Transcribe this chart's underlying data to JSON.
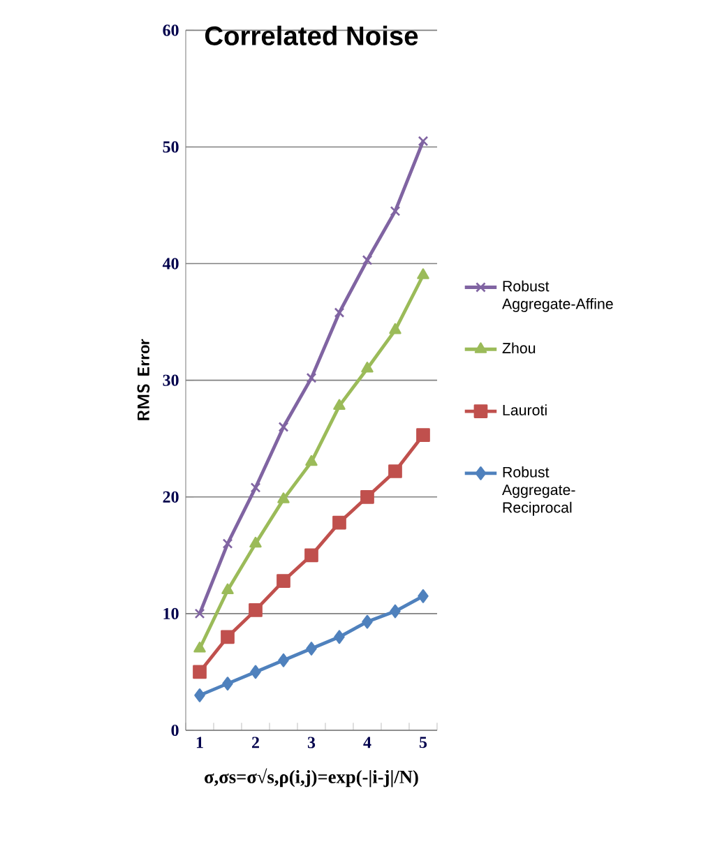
{
  "chart_data": {
    "type": "line",
    "title": "Correlated Noise",
    "xlabel": "σ,σs=σ√s,ρ(i,j)=exp(-|i-j|/N)",
    "ylabel": "RMS Error",
    "categories": [
      "1",
      null,
      "2",
      null,
      "3",
      null,
      "4",
      null,
      "5"
    ],
    "series": [
      {
        "name": "Robust Aggregate-Affine",
        "color": "#8064a2",
        "marker": "cross",
        "values": [
          10,
          16,
          20.8,
          26,
          30.2,
          35.8,
          40.3,
          44.5,
          50.5
        ]
      },
      {
        "name": "Zhou",
        "color": "#9bbb59",
        "marker": "triangle",
        "values": [
          7,
          12,
          16,
          19.8,
          23,
          27.8,
          31,
          34.3,
          39
        ]
      },
      {
        "name": "Lauroti",
        "color": "#c0504d",
        "marker": "square",
        "values": [
          5,
          8,
          10.3,
          12.8,
          15,
          17.8,
          20,
          22.2,
          25.3
        ]
      },
      {
        "name": "Robust Aggregate-Reciprocal",
        "color": "#4f81bd",
        "marker": "diamond",
        "values": [
          3,
          4,
          5,
          6,
          7,
          8,
          9.3,
          10.2,
          11.5
        ]
      }
    ],
    "ylim": [
      0,
      60
    ],
    "yticks": [
      0,
      10,
      20,
      30,
      40,
      50,
      60
    ],
    "grid": "y",
    "legend": "right"
  }
}
